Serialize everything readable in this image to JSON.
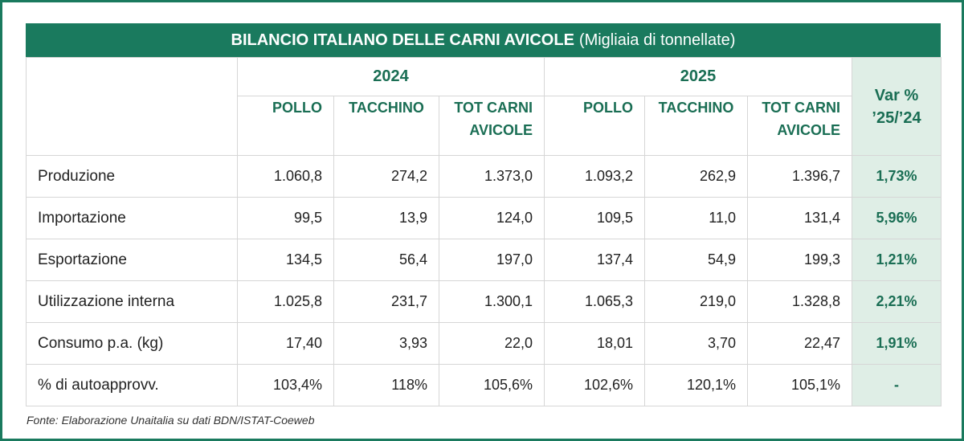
{
  "title": {
    "main": "BILANCIO ITALIANO DELLE CARNI AVICOLE",
    "unit": "(Migliaia di tonnellate)"
  },
  "years": [
    "2024",
    "2025"
  ],
  "columns": [
    "POLLO",
    "TACCHINO",
    "TOT CARNI AVICOLE"
  ],
  "var_header": [
    "Var %",
    "’25/’24"
  ],
  "rows": [
    {
      "label": "Produzione",
      "y2024": [
        "1.060,8",
        "274,2",
        "1.373,0"
      ],
      "y2025": [
        "1.093,2",
        "262,9",
        "1.396,7"
      ],
      "var": "1,73%"
    },
    {
      "label": "Importazione",
      "y2024": [
        "99,5",
        "13,9",
        "124,0"
      ],
      "y2025": [
        "109,5",
        "11,0",
        "131,4"
      ],
      "var": "5,96%"
    },
    {
      "label": "Esportazione",
      "y2024": [
        "134,5",
        "56,4",
        "197,0"
      ],
      "y2025": [
        "137,4",
        "54,9",
        "199,3"
      ],
      "var": "1,21%"
    },
    {
      "label": "Utilizzazione interna",
      "y2024": [
        "1.025,8",
        "231,7",
        "1.300,1"
      ],
      "y2025": [
        "1.065,3",
        "219,0",
        "1.328,8"
      ],
      "var": "2,21%"
    },
    {
      "label": "Consumo p.a. (kg)",
      "y2024": [
        "17,40",
        "3,93",
        "22,0"
      ],
      "y2025": [
        "18,01",
        "3,70",
        "22,47"
      ],
      "var": "1,91%"
    },
    {
      "label": "% di autoapprovv.",
      "y2024": [
        "103,4%",
        "118%",
        "105,6%"
      ],
      "y2025": [
        "102,6%",
        "120,1%",
        "105,1%"
      ],
      "var": "-"
    }
  ],
  "source": "Fonte: Elaborazione Unaitalia su dati BDN/ISTAT-Coeweb",
  "colors": {
    "accent": "#1a7a5e",
    "var_bg": "#dfeee6",
    "header_text": "#1a6e54"
  }
}
